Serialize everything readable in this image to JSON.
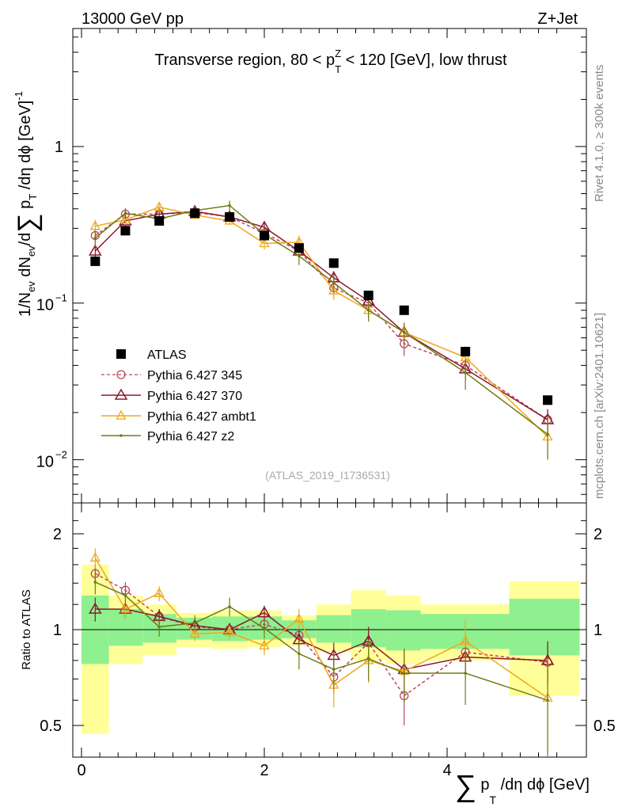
{
  "header": {
    "left": "13000 GeV pp",
    "right": "Z+Jet"
  },
  "side_text": {
    "rivet": "Rivet 4.1.0, ≥ 300k events",
    "source": "mcplots.cern.ch [arXiv:2401.10621]"
  },
  "colors": {
    "atlas": "#000000",
    "p345": "#b8475f",
    "p370": "#8b1a2c",
    "ambt1": "#f0a818",
    "z2": "#6e7c14",
    "band_green": "#8ff08f",
    "band_yellow": "#ffff9a"
  },
  "chart_data": {
    "type": "scatter",
    "title": "Transverse region, 80 < p_T^Z < 120 [GeV], low thrust",
    "analysis": "(ATLAS_2019_I1736531)",
    "xlabel": "∑ p_T /dη dϕ [GeV]",
    "ylabel": "1/N_ev dN_ev/d∑ p_T /dη dϕ [GeV]^-1",
    "ratio_ylabel": "Ratio to ATLAS",
    "xlim": [
      -0.1,
      5.5
    ],
    "ylim": [
      0.005,
      5
    ],
    "ratio_ylim": [
      0.4,
      2.4
    ],
    "x_ticks": [
      "0",
      "2",
      "4"
    ],
    "y_ticks": [
      "1",
      "10^-1",
      "10^-2"
    ],
    "ratio_ticks": [
      "2",
      "1",
      "0.5"
    ],
    "x": [
      0.15,
      0.48,
      0.85,
      1.24,
      1.62,
      2.0,
      2.38,
      2.76,
      3.14,
      3.53,
      4.2,
      5.1
    ],
    "bins": [
      [
        0.0,
        0.3
      ],
      [
        0.3,
        0.67
      ],
      [
        0.67,
        1.04
      ],
      [
        1.04,
        1.43
      ],
      [
        1.43,
        1.82
      ],
      [
        1.82,
        2.19
      ],
      [
        2.19,
        2.57
      ],
      [
        2.57,
        2.95
      ],
      [
        2.95,
        3.33
      ],
      [
        3.33,
        3.71
      ],
      [
        3.71,
        4.68
      ],
      [
        4.68,
        5.45
      ]
    ],
    "atlas": [
      0.185,
      0.29,
      0.335,
      0.375,
      0.355,
      0.27,
      0.225,
      0.18,
      0.112,
      0.09,
      0.049,
      0.024
    ],
    "band_green": [
      [
        0.78,
        1.28
      ],
      [
        0.89,
        1.16
      ],
      [
        0.91,
        1.12
      ],
      [
        0.93,
        1.09
      ],
      [
        0.92,
        1.1
      ],
      [
        0.93,
        1.1
      ],
      [
        0.94,
        1.07
      ],
      [
        0.91,
        1.11
      ],
      [
        0.88,
        1.16
      ],
      [
        0.86,
        1.15
      ],
      [
        0.87,
        1.12
      ],
      [
        0.83,
        1.25
      ]
    ],
    "band_yellow": [
      [
        0.47,
        1.6
      ],
      [
        0.78,
        1.28
      ],
      [
        0.83,
        1.2
      ],
      [
        0.88,
        1.13
      ],
      [
        0.87,
        1.15
      ],
      [
        0.88,
        1.15
      ],
      [
        0.89,
        1.11
      ],
      [
        0.85,
        1.2
      ],
      [
        0.8,
        1.33
      ],
      [
        0.78,
        1.28
      ],
      [
        0.8,
        1.2
      ],
      [
        0.62,
        1.42
      ]
    ],
    "series": [
      {
        "name": "Pythia 6.427 345",
        "key": "p345",
        "marker": "circle",
        "dash": true,
        "values": [
          0.27,
          0.37,
          0.37,
          0.38,
          0.355,
          0.28,
          0.215,
          0.125,
          0.1,
          0.055,
          0.04,
          0.018
        ],
        "errors": [
          0.025,
          0.025,
          0.02,
          0.02,
          0.02,
          0.02,
          0.02,
          0.015,
          0.012,
          0.009,
          0.006,
          0.003
        ]
      },
      {
        "name": "Pythia 6.427 370",
        "key": "p370",
        "marker": "triangle",
        "dash": false,
        "values": [
          0.215,
          0.335,
          0.37,
          0.385,
          0.355,
          0.305,
          0.215,
          0.145,
          0.103,
          0.065,
          0.038,
          0.018
        ],
        "errors": [
          0.025,
          0.025,
          0.02,
          0.02,
          0.02,
          0.02,
          0.02,
          0.015,
          0.012,
          0.009,
          0.006,
          0.003
        ]
      },
      {
        "name": "Pythia 6.427 ambt1",
        "key": "ambt1",
        "marker": "triangle-small",
        "dash": false,
        "values": [
          0.31,
          0.34,
          0.41,
          0.365,
          0.335,
          0.24,
          0.245,
          0.12,
          0.09,
          0.065,
          0.045,
          0.014
        ],
        "errors": [
          0.03,
          0.025,
          0.025,
          0.02,
          0.02,
          0.02,
          0.025,
          0.015,
          0.012,
          0.01,
          0.008,
          0.004
        ]
      },
      {
        "name": "Pythia 6.427 z2",
        "key": "z2",
        "marker": "dot",
        "dash": false,
        "values": [
          0.26,
          0.375,
          0.345,
          0.39,
          0.42,
          0.275,
          0.2,
          0.135,
          0.09,
          0.065,
          0.036,
          0.0145
        ],
        "errors": [
          0.03,
          0.03,
          0.025,
          0.025,
          0.03,
          0.025,
          0.025,
          0.018,
          0.014,
          0.01,
          0.008,
          0.0045
        ]
      }
    ],
    "ratios": {
      "p345": {
        "values": [
          1.5,
          1.33,
          1.1,
          1.02,
          1.0,
          1.04,
          0.96,
          0.71,
          0.91,
          0.62,
          0.85,
          0.79
        ],
        "errors": [
          0.1,
          0.08,
          0.06,
          0.05,
          0.05,
          0.06,
          0.07,
          0.08,
          0.1,
          0.12,
          0.12,
          0.12
        ]
      },
      "p370": {
        "values": [
          1.16,
          1.16,
          1.1,
          1.03,
          1.0,
          1.13,
          0.93,
          0.83,
          0.92,
          0.75,
          0.82,
          0.8
        ],
        "errors": [
          0.1,
          0.08,
          0.06,
          0.05,
          0.05,
          0.06,
          0.07,
          0.08,
          0.1,
          0.12,
          0.12,
          0.12
        ]
      },
      "ambt1": {
        "values": [
          1.68,
          1.16,
          1.3,
          0.97,
          0.98,
          0.89,
          1.08,
          0.67,
          0.8,
          0.74,
          0.92,
          0.61
        ],
        "errors": [
          0.12,
          0.08,
          0.07,
          0.05,
          0.05,
          0.06,
          0.08,
          0.1,
          0.12,
          0.13,
          0.15,
          0.2
        ]
      },
      "z2": {
        "values": [
          1.41,
          1.28,
          1.02,
          1.05,
          1.18,
          1.01,
          0.84,
          0.75,
          0.81,
          0.73,
          0.73,
          0.6
        ],
        "errors": [
          0.12,
          0.1,
          0.07,
          0.06,
          0.08,
          0.07,
          0.09,
          0.1,
          0.12,
          0.14,
          0.15,
          0.2
        ]
      }
    },
    "legend": {
      "placement": "middle-left",
      "entries": [
        "ATLAS",
        "Pythia 6.427 345",
        "Pythia 6.427 370",
        "Pythia 6.427 ambt1",
        "Pythia 6.427 z2"
      ]
    }
  }
}
